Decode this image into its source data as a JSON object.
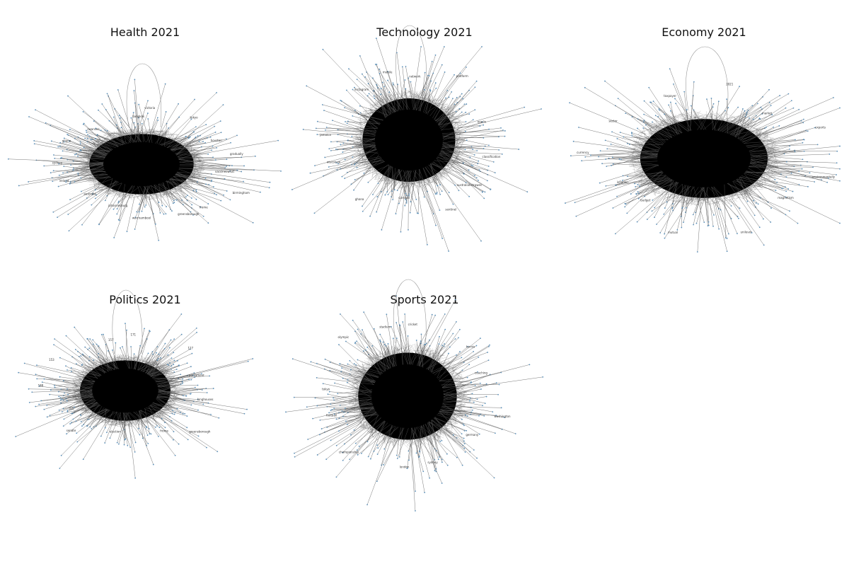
{
  "figure": {
    "panels": [
      {
        "id": "health",
        "title": "Health 2021",
        "labels": [
          "vaccineswhat",
          "birmingham",
          "frome",
          "greensborough",
          "warrnambool",
          "johannesburg",
          "australia",
          "ireland",
          "sydney",
          "ghana",
          "swansea",
          "bangkok",
          "victoria",
          "tokyo",
          "houston",
          "gradually"
        ]
      },
      {
        "id": "technology",
        "title": "Technology 2021",
        "labels": [
          "classification",
          "australianstrawes",
          "sentinel",
          "carnival",
          "ghana",
          "wisconsin",
          "jamaica",
          "instagram",
          "mobile",
          "network",
          "platform",
          "oracle"
        ]
      },
      {
        "id": "economy",
        "title": "Economy 2021",
        "labels": [
          "environmentally",
          "magnetism",
          "unilever",
          "mutual",
          "budget",
          "inflation",
          "currency",
          "sector",
          "taxpayer",
          "2021",
          "market",
          "exports"
        ]
      },
      {
        "id": "politics",
        "title": "Politics 2021",
        "labels": [
          "longhouses",
          "greensborough",
          "frome",
          "election",
          "senate",
          "165",
          "188",
          "153",
          "157",
          "171",
          "127",
          "parliament"
        ]
      },
      {
        "id": "sports",
        "title": "Sports 2021",
        "labels": [
          "washington",
          "germany",
          "sydney",
          "london",
          "championship",
          "football",
          "tokyo",
          "olympic",
          "stadium",
          "cricket",
          "tennis",
          "coaching"
        ]
      }
    ]
  }
}
